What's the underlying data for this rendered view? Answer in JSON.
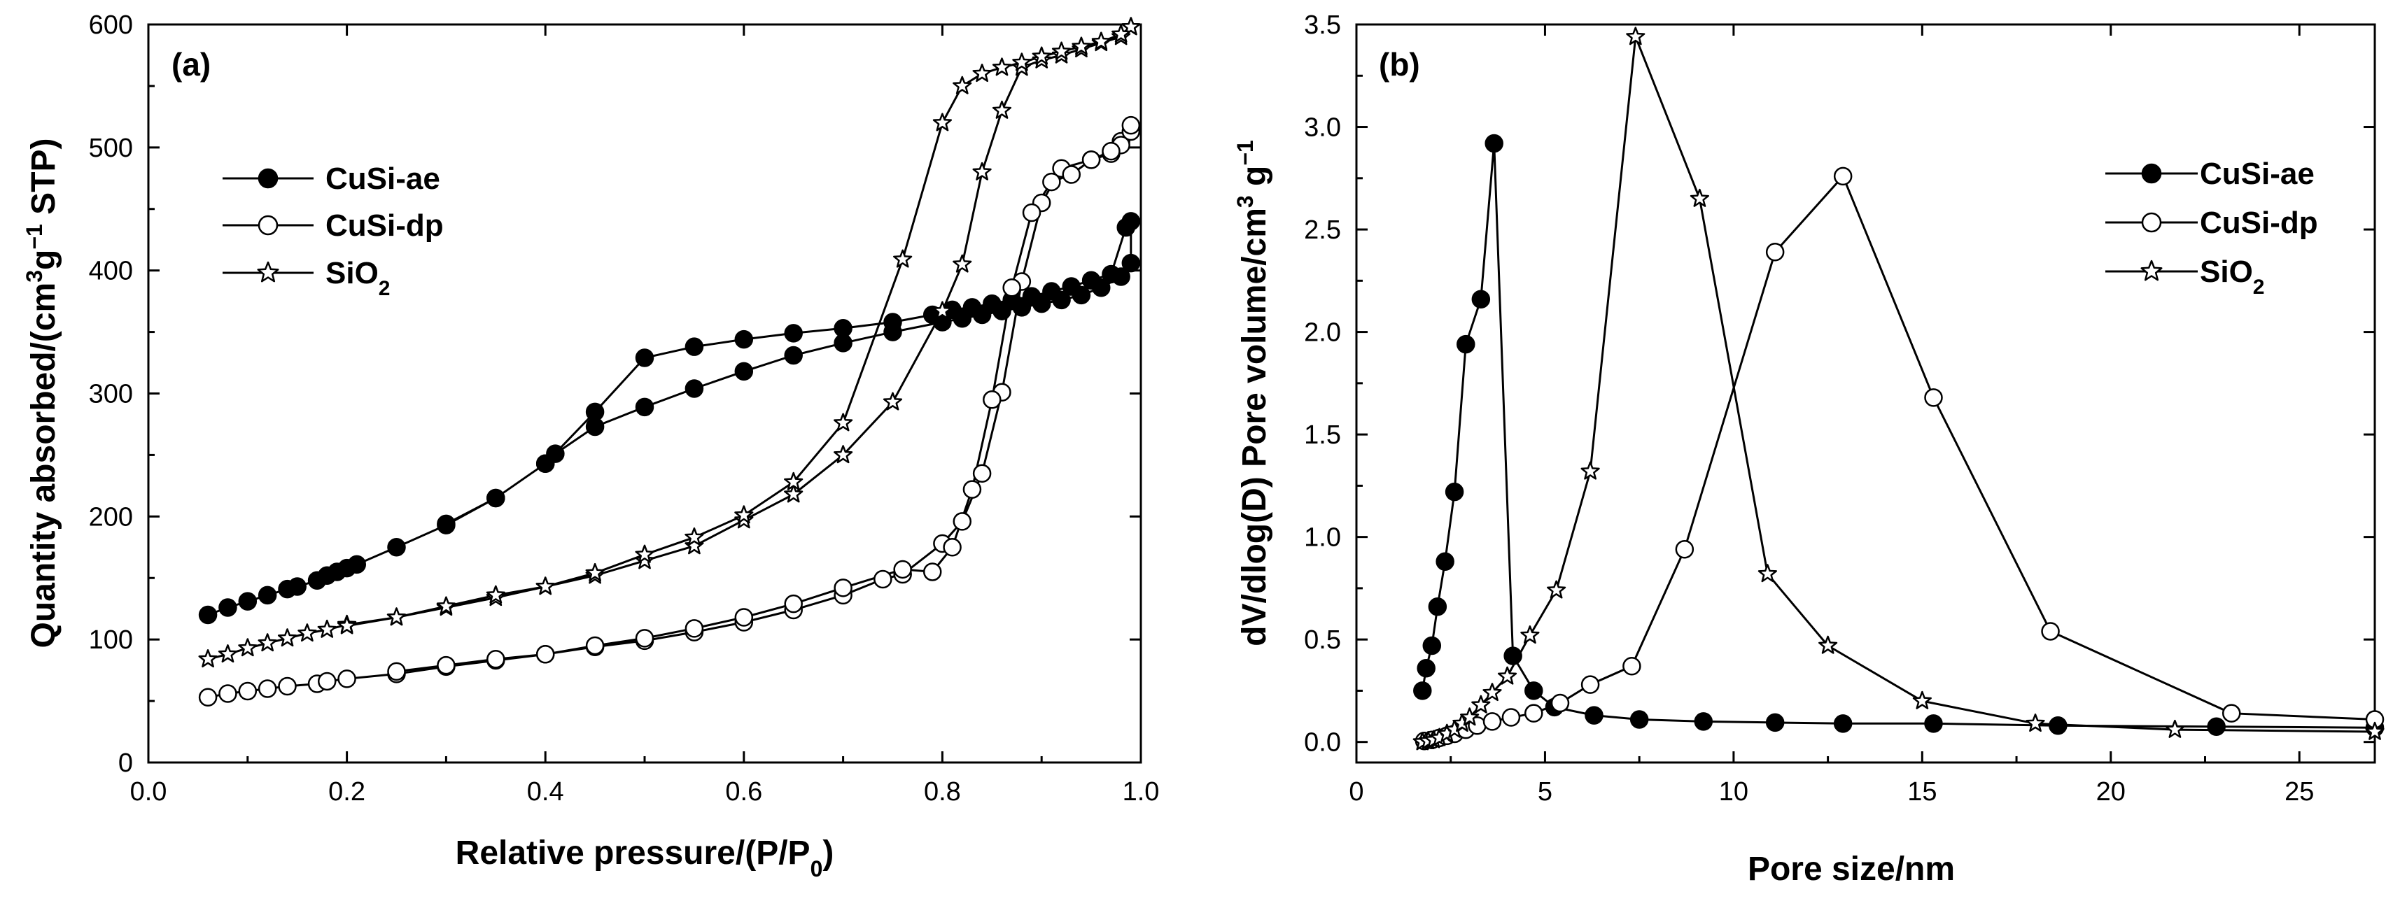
{
  "chart_data": [
    {
      "type": "line",
      "panel_label": "(a)",
      "xlabel": {
        "pre": "Relative pressure/(P/P",
        "sub": "0",
        "post": ")"
      },
      "ylabel": {
        "pre": "Quantity absorbed/(cm",
        "sup1": "3",
        "mid": "g",
        "sup2": "−1",
        "post": " STP)"
      },
      "xlim": [
        0.0,
        1.0
      ],
      "ylim": [
        0,
        600
      ],
      "xticks": [
        0.0,
        0.2,
        0.4,
        0.6,
        0.8,
        1.0
      ],
      "xtick_labels": [
        "0.0",
        "0.2",
        "0.4",
        "0.6",
        "0.8",
        "1.0"
      ],
      "yticks": [
        0,
        100,
        200,
        300,
        400,
        500,
        600
      ],
      "ytick_labels": [
        "0",
        "100",
        "200",
        "300",
        "400",
        "500",
        "600"
      ],
      "legend": {
        "position": "top-left",
        "entries": [
          {
            "name": "CuSi-ae",
            "marker": "filled-circle"
          },
          {
            "name": "CuSi-dp",
            "marker": "open-circle"
          },
          {
            "name": "SiO",
            "sub": "2",
            "marker": "star"
          }
        ]
      },
      "series": [
        {
          "name": "CuSi-ae",
          "marker": "filled-circle",
          "x": [
            0.06,
            0.08,
            0.1,
            0.12,
            0.14,
            0.15,
            0.17,
            0.18,
            0.19,
            0.2,
            0.21,
            0.25,
            0.3,
            0.35,
            0.4,
            0.41,
            0.45,
            0.5,
            0.55,
            0.6,
            0.65,
            0.7,
            0.75,
            0.8,
            0.82,
            0.84,
            0.86,
            0.88,
            0.9,
            0.92,
            0.94,
            0.96,
            0.98,
            0.99,
            0.99,
            0.985,
            0.97,
            0.95,
            0.93,
            0.91,
            0.89,
            0.87,
            0.85,
            0.83,
            0.81,
            0.79,
            0.75,
            0.7,
            0.65,
            0.6,
            0.55,
            0.5,
            0.45,
            0.4,
            0.35,
            0.3
          ],
          "y": [
            120,
            126,
            131,
            136,
            141,
            143,
            148,
            152,
            155,
            158,
            161,
            175,
            193,
            215,
            243,
            251,
            273,
            289,
            304,
            318,
            331,
            341,
            350,
            358,
            361,
            364,
            367,
            370,
            373,
            376,
            380,
            386,
            395,
            406,
            440,
            435,
            397,
            392,
            387,
            383,
            379,
            376,
            373,
            370,
            368,
            364,
            358,
            353,
            349,
            344,
            338,
            329,
            285,
            243,
            215,
            194
          ]
        },
        {
          "name": "CuSi-dp",
          "marker": "open-circle",
          "x": [
            0.06,
            0.08,
            0.1,
            0.12,
            0.14,
            0.17,
            0.18,
            0.2,
            0.25,
            0.3,
            0.35,
            0.4,
            0.45,
            0.5,
            0.55,
            0.6,
            0.65,
            0.7,
            0.74,
            0.76,
            0.8,
            0.82,
            0.84,
            0.86,
            0.88,
            0.9,
            0.92,
            0.95,
            0.97,
            0.98,
            0.99,
            0.99,
            0.98,
            0.97,
            0.95,
            0.93,
            0.91,
            0.89,
            0.87,
            0.85,
            0.83,
            0.81,
            0.79,
            0.76,
            0.7,
            0.65,
            0.6,
            0.55,
            0.5,
            0.45,
            0.4,
            0.35,
            0.3,
            0.25
          ],
          "y": [
            53,
            56,
            58,
            60,
            62,
            64,
            66,
            68,
            72,
            78,
            83,
            88,
            94,
            99,
            106,
            114,
            124,
            136,
            149,
            153,
            178,
            196,
            235,
            301,
            391,
            455,
            483,
            490,
            495,
            505,
            513,
            518,
            502,
            497,
            490,
            478,
            472,
            447,
            386,
            295,
            222,
            175,
            155,
            157,
            142,
            129,
            118,
            109,
            101,
            95,
            88,
            84,
            79,
            74
          ]
        },
        {
          "name": "SiO2",
          "marker": "star",
          "x": [
            0.06,
            0.08,
            0.1,
            0.12,
            0.14,
            0.16,
            0.18,
            0.2,
            0.25,
            0.3,
            0.35,
            0.4,
            0.45,
            0.5,
            0.55,
            0.6,
            0.65,
            0.7,
            0.75,
            0.8,
            0.82,
            0.84,
            0.86,
            0.88,
            0.9,
            0.92,
            0.94,
            0.96,
            0.98,
            0.99,
            0.99,
            0.98,
            0.96,
            0.94,
            0.92,
            0.9,
            0.88,
            0.86,
            0.84,
            0.82,
            0.8,
            0.76,
            0.7,
            0.65,
            0.6,
            0.55,
            0.5,
            0.45,
            0.4,
            0.35,
            0.3,
            0.25,
            0.2
          ],
          "y": [
            84,
            88,
            93,
            97,
            101,
            105,
            108,
            112,
            118,
            126,
            134,
            143,
            152,
            164,
            176,
            197,
            218,
            250,
            293,
            367,
            405,
            480,
            530,
            565,
            571,
            575,
            580,
            585,
            590,
            598,
            598,
            592,
            586,
            582,
            578,
            574,
            569,
            565,
            560,
            550,
            520,
            409,
            276,
            228,
            201,
            183,
            169,
            154,
            143,
            136,
            127,
            118,
            111
          ]
        }
      ]
    },
    {
      "type": "line",
      "panel_label": "(b)",
      "xlabel": "Pore size/nm",
      "ylabel": {
        "pre": "dV/dlog(D) Pore volume/cm",
        "sup1": "3",
        "mid": " g",
        "sup2": "−1",
        "post": ""
      },
      "xlim": [
        0,
        27
      ],
      "ylim": [
        -0.1,
        3.5
      ],
      "xticks": [
        0,
        5,
        10,
        15,
        20,
        25
      ],
      "xtick_labels": [
        "0",
        "5",
        "10",
        "15",
        "20",
        "25"
      ],
      "yticks": [
        0.0,
        0.5,
        1.0,
        1.5,
        2.0,
        2.5,
        3.0,
        3.5
      ],
      "ytick_labels": [
        "0.0",
        "0.5",
        "1.0",
        "1.5",
        "2.0",
        "2.5",
        "3.0",
        "3.5"
      ],
      "legend": {
        "position": "top-right",
        "entries": [
          {
            "name": "CuSi-ae",
            "marker": "filled-circle"
          },
          {
            "name": "CuSi-dp",
            "marker": "open-circle"
          },
          {
            "name": "SiO",
            "sub": "2",
            "marker": "star"
          }
        ]
      },
      "series": [
        {
          "name": "CuSi-ae",
          "marker": "filled-circle",
          "x": [
            1.75,
            1.85,
            2.0,
            2.15,
            2.35,
            2.6,
            2.9,
            3.3,
            3.65,
            4.15,
            4.7,
            5.25,
            6.3,
            7.5,
            9.2,
            11.1,
            12.9,
            15.3,
            18.6,
            22.8,
            27.0
          ],
          "y": [
            0.25,
            0.36,
            0.47,
            0.66,
            0.88,
            1.22,
            1.94,
            2.16,
            2.92,
            0.42,
            0.25,
            0.17,
            0.13,
            0.11,
            0.1,
            0.095,
            0.09,
            0.09,
            0.08,
            0.075,
            0.07
          ]
        },
        {
          "name": "CuSi-dp",
          "marker": "open-circle",
          "x": [
            1.8,
            2.0,
            2.2,
            2.4,
            2.6,
            2.9,
            3.2,
            3.6,
            4.1,
            4.7,
            5.4,
            6.2,
            7.3,
            8.7,
            11.1,
            12.9,
            15.3,
            18.4,
            23.2,
            27.0
          ],
          "y": [
            0.005,
            0.01,
            0.02,
            0.03,
            0.04,
            0.06,
            0.08,
            0.1,
            0.12,
            0.14,
            0.19,
            0.28,
            0.37,
            0.94,
            2.39,
            2.76,
            1.68,
            0.54,
            0.14,
            0.11
          ]
        },
        {
          "name": "SiO2",
          "marker": "star",
          "x": [
            1.75,
            1.9,
            2.05,
            2.2,
            2.4,
            2.6,
            2.8,
            3.0,
            3.3,
            3.6,
            4.0,
            4.6,
            5.3,
            6.2,
            7.4,
            9.1,
            10.9,
            12.5,
            15.0,
            18.0,
            21.7,
            27.0
          ],
          "y": [
            0.0,
            0.005,
            0.01,
            0.02,
            0.04,
            0.06,
            0.09,
            0.12,
            0.18,
            0.24,
            0.32,
            0.52,
            0.74,
            1.32,
            3.44,
            2.65,
            0.82,
            0.47,
            0.2,
            0.09,
            0.06,
            0.05
          ]
        }
      ]
    }
  ]
}
